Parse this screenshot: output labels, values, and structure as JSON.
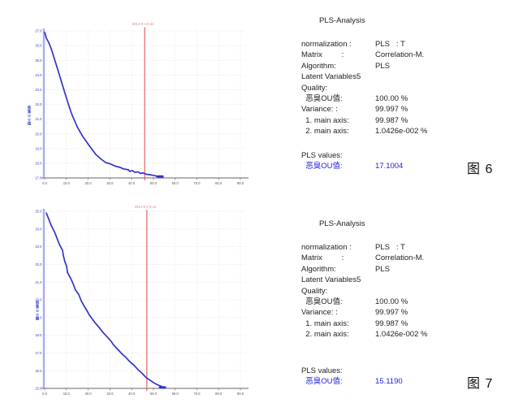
{
  "colors": {
    "curve_blue": "#3333cc",
    "axis_label_blue": "#3344cc",
    "marker_red": "#dd5555",
    "annotation_red": "#e08585",
    "result_blue": "#2222dd",
    "grid_gray": "#d8d8d8",
    "y_axis_lavender": "#a8aef0"
  },
  "panels": [
    {
      "title": "PLS-Analysis",
      "rows": [
        {
          "label": "normalization : ",
          "value": "PLS   : T"
        },
        {
          "label": "Matrix         :",
          "value": "Correlation-M."
        },
        {
          "label": "Algorithm:",
          "value": "PLS"
        },
        {
          "label": "Latent Variables5",
          "value": ""
        },
        {
          "label": "Quality:",
          "value": ""
        },
        {
          "label": "  恶臭OU值:",
          "value": "100.00 %"
        },
        {
          "label": "Variance: :",
          "value": "99.997 %"
        },
        {
          "label": "  1. main axis:",
          "value": "99.987 %"
        },
        {
          "label": "  2. main axis:",
          "value": "1.0426e-002 %"
        }
      ],
      "result_label": "PLS  values:",
      "result_name": "  恶臭OU值:",
      "result_value": "17.1004",
      "caption": "图 6"
    },
    {
      "title": "PLS-Analysis",
      "rows": [
        {
          "label": "normalization : ",
          "value": "PLS   : T"
        },
        {
          "label": "Matrix         :",
          "value": "Correlation-M."
        },
        {
          "label": "Algorithm:",
          "value": "PLS"
        },
        {
          "label": "Latent Variables5",
          "value": ""
        },
        {
          "label": "Quality:",
          "value": ""
        },
        {
          "label": "  恶臭OU值:",
          "value": "100.00 %"
        },
        {
          "label": "Variance: :",
          "value": "99.997 %"
        },
        {
          "label": "  1. main axis:",
          "value": "99.987 %"
        },
        {
          "label": "  2. main axis:",
          "value": "1.0426e-002 %"
        }
      ],
      "result_label": "PLS  values:",
      "result_name": "  恶臭OU值:",
      "result_value": "15.1190",
      "caption": "图 7"
    }
  ],
  "chart_data": [
    {
      "type": "line",
      "title": "",
      "annotation": "2014-9-4 9:42",
      "ylabel": "恶臭OU值",
      "xlabel": "",
      "grid": true,
      "xlim": [
        0,
        90
      ],
      "ylim": [
        17,
        27
      ],
      "x_ticks": [
        0,
        10,
        20,
        30,
        40,
        50,
        60,
        70,
        80,
        90
      ],
      "x_tick_labels": [
        "0.0",
        "10.0",
        "20.0",
        "30.0",
        "40.0",
        "50.0",
        "60.0",
        "70.0",
        "80.0",
        "90.0"
      ],
      "y_ticks": [
        27,
        26,
        25,
        24,
        23,
        22,
        21,
        20,
        19,
        18,
        17
      ],
      "y_tick_labels": [
        "27.0",
        "26.0",
        "25.0",
        "24.0",
        "23.0",
        "22.0",
        "21.0",
        "20.0",
        "19.0",
        "18.0",
        "17.0"
      ],
      "marker_line_x": 46,
      "series": [
        {
          "name": "恶臭OU值",
          "color": "#3333cc",
          "points": [
            [
              0,
              26.9
            ],
            [
              0.8,
              26.5
            ],
            [
              1.9,
              26.2
            ],
            [
              3.0,
              25.8
            ],
            [
              4.5,
              25.1
            ],
            [
              6.4,
              24.2
            ],
            [
              8.2,
              23.3
            ],
            [
              10.1,
              22.4
            ],
            [
              12.3,
              21.4
            ],
            [
              14.9,
              20.5
            ],
            [
              17.6,
              19.8
            ],
            [
              20.5,
              19.2
            ],
            [
              23.5,
              18.6
            ],
            [
              25.8,
              18.3
            ],
            [
              28.0,
              18.05
            ],
            [
              30.3,
              17.95
            ],
            [
              32.5,
              17.8
            ],
            [
              34.7,
              17.72
            ],
            [
              36.2,
              17.62
            ],
            [
              38.5,
              17.55
            ],
            [
              39.2,
              17.44
            ],
            [
              40.3,
              17.5
            ],
            [
              41.5,
              17.38
            ],
            [
              43.0,
              17.42
            ],
            [
              44.1,
              17.3
            ],
            [
              45.2,
              17.35
            ],
            [
              46.7,
              17.25
            ],
            [
              48.2,
              17.22
            ],
            [
              49.7,
              17.18
            ],
            [
              51.2,
              17.13
            ],
            [
              52.7,
              17.11
            ],
            [
              54.2,
              17.1
            ]
          ]
        }
      ]
    },
    {
      "type": "line",
      "title": "",
      "annotation": "2014-9-4 9:42",
      "ylabel": "恶臭OU值",
      "xlabel": "",
      "grid": true,
      "xlim": [
        0,
        90
      ],
      "ylim": [
        15,
        25
      ],
      "x_ticks": [
        0,
        10,
        20,
        30,
        40,
        50,
        60,
        70,
        80,
        90
      ],
      "x_tick_labels": [
        "0.0",
        "10.0",
        "20.0",
        "30.0",
        "40.0",
        "50.0",
        "60.0",
        "70.0",
        "80.0",
        "90.0"
      ],
      "y_ticks": [
        25,
        24,
        23,
        22,
        21,
        20,
        19,
        18,
        17,
        16,
        15
      ],
      "y_tick_labels": [
        "25.0",
        "24.0",
        "23.0",
        "22.0",
        "21.0",
        "20.0",
        "19.0",
        "18.0",
        "17.0",
        "16.0",
        "15.0"
      ],
      "marker_line_x": 47,
      "series": [
        {
          "name": "恶臭OU值",
          "color": "#3333cc",
          "points": [
            [
              0.8,
              24.9
            ],
            [
              1.9,
              24.55
            ],
            [
              3.0,
              24.2
            ],
            [
              4.5,
              23.85
            ],
            [
              5.6,
              23.5
            ],
            [
              6.7,
              23.15
            ],
            [
              8.2,
              22.8
            ],
            [
              8.6,
              22.5
            ],
            [
              9.3,
              22.15
            ],
            [
              10.1,
              21.9
            ],
            [
              10.5,
              21.55
            ],
            [
              12.0,
              21.2
            ],
            [
              13.1,
              20.9
            ],
            [
              14.2,
              20.55
            ],
            [
              15.7,
              20.3
            ],
            [
              16.8,
              19.95
            ],
            [
              17.9,
              19.7
            ],
            [
              19.4,
              19.4
            ],
            [
              20.5,
              19.15
            ],
            [
              21.7,
              18.95
            ],
            [
              23.2,
              18.7
            ],
            [
              25.0,
              18.45
            ],
            [
              26.9,
              18.15
            ],
            [
              28.8,
              17.9
            ],
            [
              30.6,
              17.65
            ],
            [
              31.7,
              17.45
            ],
            [
              33.6,
              17.2
            ],
            [
              35.5,
              16.95
            ],
            [
              37.3,
              16.75
            ],
            [
              39.2,
              16.5
            ],
            [
              41.1,
              16.3
            ],
            [
              43.0,
              16.05
            ],
            [
              44.8,
              15.85
            ],
            [
              46.7,
              15.6
            ],
            [
              48.6,
              15.45
            ],
            [
              50.4,
              15.3
            ],
            [
              52.3,
              15.18
            ],
            [
              54.2,
              15.09
            ],
            [
              55.3,
              15.05
            ]
          ]
        }
      ]
    }
  ]
}
